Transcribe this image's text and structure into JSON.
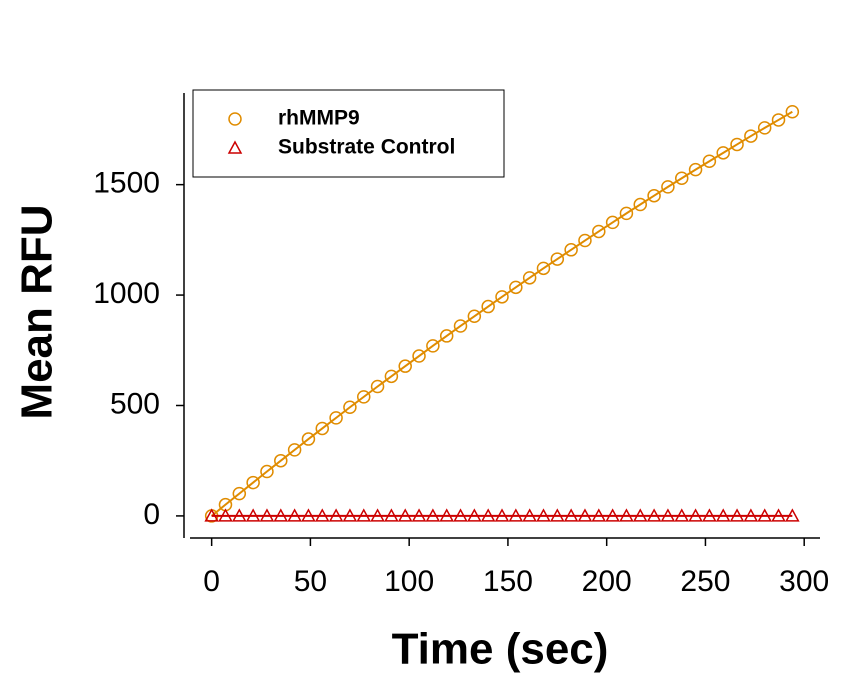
{
  "chart_data": {
    "type": "line",
    "xlabel": "Time (sec)",
    "ylabel": "Mean RFU",
    "x": [
      0,
      7,
      14,
      21,
      28,
      35,
      42,
      49,
      56,
      63,
      70,
      77,
      84,
      91,
      98,
      105,
      112,
      119,
      126,
      133,
      140,
      147,
      154,
      161,
      168,
      175,
      182,
      189,
      196,
      203,
      210,
      217,
      224,
      231,
      238,
      245,
      252,
      259,
      266,
      273,
      280,
      287,
      294
    ],
    "series": [
      {
        "name": "rhMMP9",
        "color": "#e08c00",
        "marker": "circle",
        "values": [
          0,
          51,
          101,
          151,
          201,
          250,
          299,
          348,
          396,
          444,
          492,
          539,
          586,
          632,
          678,
          724,
          770,
          815,
          860,
          904,
          948,
          992,
          1035,
          1078,
          1121,
          1163,
          1205,
          1247,
          1288,
          1329,
          1370,
          1410,
          1450,
          1490,
          1529,
          1568,
          1606,
          1644,
          1682,
          1720,
          1757,
          1793,
          1830
        ]
      },
      {
        "name": "Substrate Control",
        "color": "#cc0000",
        "marker": "triangle",
        "values": [
          0,
          0,
          0,
          0,
          0,
          0,
          0,
          0,
          0,
          0,
          0,
          0,
          0,
          0,
          0,
          0,
          0,
          0,
          0,
          0,
          0,
          0,
          0,
          0,
          0,
          0,
          0,
          0,
          0,
          0,
          0,
          0,
          0,
          0,
          0,
          0,
          0,
          0,
          0,
          0,
          0,
          0,
          0
        ]
      }
    ],
    "xlim": [
      -14,
      308
    ],
    "ylim": [
      -100,
      1915
    ],
    "xticks": [
      0,
      50,
      100,
      150,
      200,
      250,
      300
    ],
    "yticks": [
      0,
      500,
      1000,
      1500
    ],
    "legend": "upper-left",
    "grid": false
  }
}
